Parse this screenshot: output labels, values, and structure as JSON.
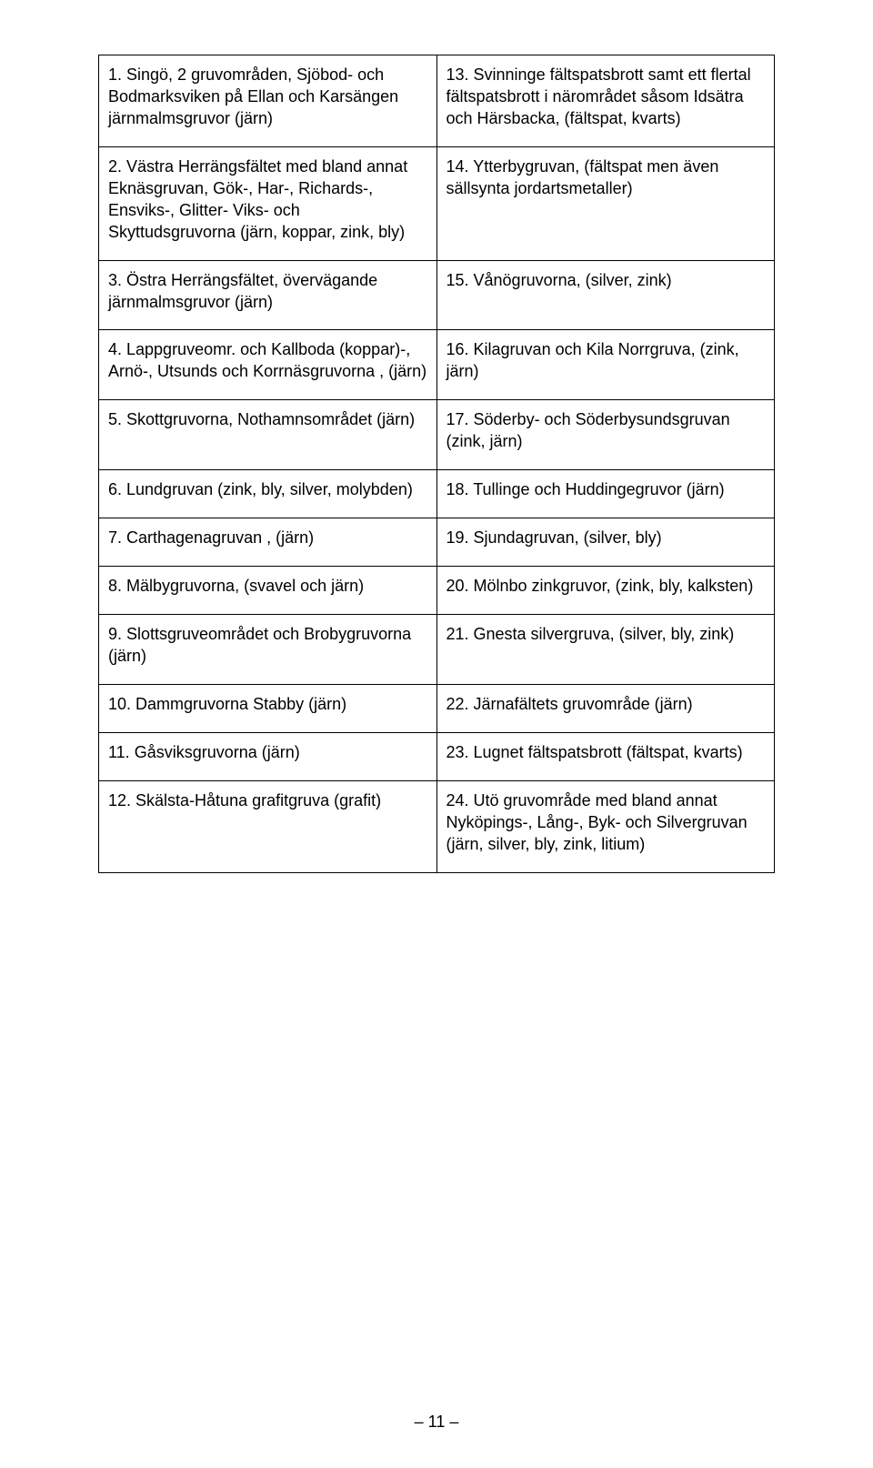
{
  "table": {
    "rows": [
      {
        "left": "1. Singö, 2 gruvområden, Sjöbod- och Bodmarksviken på Ellan och Karsängen järnmalmsgruvor (järn)",
        "right": "13. Svinninge fältspatsbrott samt ett flertal fältspatsbrott i närområdet såsom Idsätra och Härsbacka, (fältspat, kvarts)"
      },
      {
        "left": "2. Västra Herrängsfältet med bland annat Eknäsgruvan, Gök-, Har-, Richards-, Ensviks-, Glitter- Viks- och Skyttudsgruvorna (järn, koppar, zink, bly)",
        "right": "14. Ytterbygruvan, (fältspat men även sällsynta jordartsmetaller)"
      },
      {
        "left": "3. Östra Herrängsfältet, övervägande järnmalmsgruvor (järn)",
        "right": "15. Vånögruvorna, (silver, zink)"
      },
      {
        "left": "4. Lappgruveomr. och Kallboda (koppar)-, Arnö-, Utsunds och Korrnäsgruvorna , (järn)",
        "right": "16. Kilagruvan och Kila Norrgruva, (zink, järn)"
      },
      {
        "left": "5. Skottgruvorna, Nothamnsområdet (järn)",
        "right": "17. Söderby- och Söderbysundsgruvan (zink, järn)"
      },
      {
        "left": "6. Lundgruvan (zink, bly, silver, molybden)",
        "right": "18. Tullinge och Huddingegruvor (järn)"
      },
      {
        "left": "7. Carthagenagruvan , (järn)",
        "right": "19. Sjundagruvan, (silver, bly)"
      },
      {
        "left": "8. Mälbygruvorna, (svavel och järn)",
        "right": "20. Mölnbo zinkgruvor, (zink, bly, kalksten)"
      },
      {
        "left": "9. Slottsgruveområdet och Brobygruvorna (järn)",
        "right": "21. Gnesta silvergruva, (silver, bly, zink)"
      },
      {
        "left": "10. Dammgruvorna Stabby (järn)",
        "right": "22. Järnafältets gruvområde (järn)"
      },
      {
        "left": "11. Gåsviksgruvorna (järn)",
        "right": "23. Lugnet fältspatsbrott (fältspat, kvarts)"
      },
      {
        "left": "12. Skälsta-Håtuna grafitgruva (grafit)",
        "right": "24. Utö gruvområde med bland annat Nyköpings-, Lång-, Byk- och Silvergruvan (järn, silver, bly, zink, litium)"
      }
    ]
  },
  "page_number": "– 11 –"
}
